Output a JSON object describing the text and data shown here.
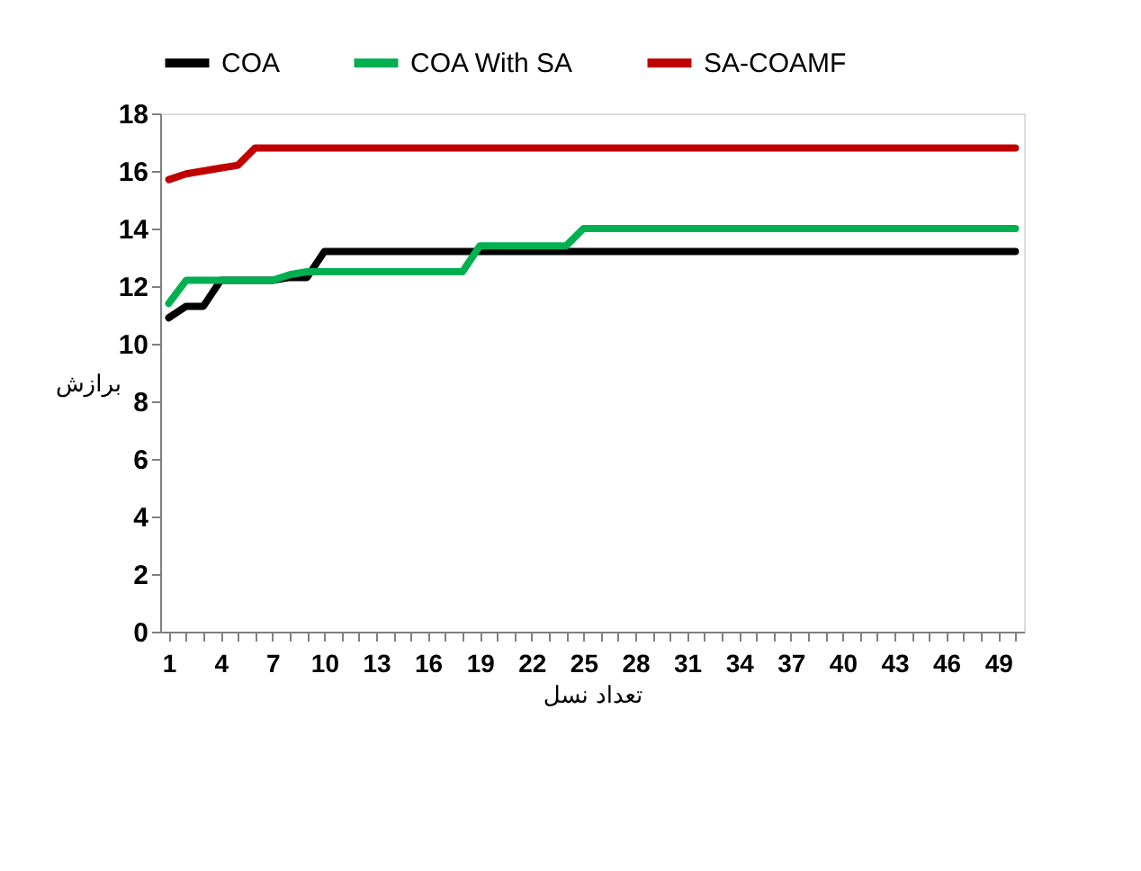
{
  "chart_data": {
    "type": "line",
    "xlabel": "تعداد نسل",
    "ylabel": "برازش",
    "categories": [
      "1",
      null,
      null,
      "4",
      null,
      null,
      "7",
      null,
      null,
      "10",
      null,
      null,
      "13",
      null,
      null,
      "16",
      null,
      null,
      "19",
      null,
      null,
      "22",
      null,
      null,
      "25",
      null,
      null,
      "28",
      null,
      null,
      "31",
      null,
      null,
      "34",
      null,
      null,
      "37",
      null,
      null,
      "40",
      null,
      null,
      "43",
      null,
      null,
      "46",
      null,
      null,
      "49",
      null
    ],
    "series": [
      {
        "name": "COA",
        "color": "#000000",
        "values": [
          10.9,
          11.3,
          11.3,
          12.2,
          12.2,
          12.2,
          12.2,
          12.3,
          12.3,
          13.2,
          13.2,
          13.2,
          13.2,
          13.2,
          13.2,
          13.2,
          13.2,
          13.2,
          13.2,
          13.2,
          13.2,
          13.2,
          13.2,
          13.2,
          13.2,
          13.2,
          13.2,
          13.2,
          13.2,
          13.2,
          13.2,
          13.2,
          13.2,
          13.2,
          13.2,
          13.2,
          13.2,
          13.2,
          13.2,
          13.2,
          13.2,
          13.2,
          13.2,
          13.2,
          13.2,
          13.2,
          13.2,
          13.2,
          13.2,
          13.2
        ]
      },
      {
        "name": "COA With SA",
        "color": "#00b050",
        "values": [
          11.4,
          12.2,
          12.2,
          12.2,
          12.2,
          12.2,
          12.2,
          12.4,
          12.5,
          12.5,
          12.5,
          12.5,
          12.5,
          12.5,
          12.5,
          12.5,
          12.5,
          12.5,
          13.4,
          13.4,
          13.4,
          13.4,
          13.4,
          13.4,
          14.0,
          14.0,
          14.0,
          14.0,
          14.0,
          14.0,
          14.0,
          14.0,
          14.0,
          14.0,
          14.0,
          14.0,
          14.0,
          14.0,
          14.0,
          14.0,
          14.0,
          14.0,
          14.0,
          14.0,
          14.0,
          14.0,
          14.0,
          14.0,
          14.0,
          14.0
        ]
      },
      {
        "name": "SA-COAMF",
        "color": "#c00000",
        "values": [
          15.7,
          15.9,
          16.0,
          16.1,
          16.2,
          16.8,
          16.8,
          16.8,
          16.8,
          16.8,
          16.8,
          16.8,
          16.8,
          16.8,
          16.8,
          16.8,
          16.8,
          16.8,
          16.8,
          16.8,
          16.8,
          16.8,
          16.8,
          16.8,
          16.8,
          16.8,
          16.8,
          16.8,
          16.8,
          16.8,
          16.8,
          16.8,
          16.8,
          16.8,
          16.8,
          16.8,
          16.8,
          16.8,
          16.8,
          16.8,
          16.8,
          16.8,
          16.8,
          16.8,
          16.8,
          16.8,
          16.8,
          16.8,
          16.8,
          16.8
        ]
      }
    ],
    "ylim": [
      0,
      18
    ],
    "yticks": [
      0,
      2,
      4,
      6,
      8,
      10,
      12,
      14,
      16,
      18
    ],
    "legend": "top"
  }
}
